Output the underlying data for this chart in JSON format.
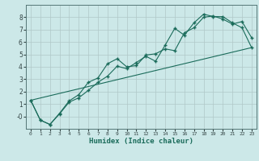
{
  "xlabel": "Humidex (Indice chaleur)",
  "bg_color": "#cce8e8",
  "grid_color": "#b0c8c8",
  "line_color": "#1a6b5a",
  "xlim": [
    -0.5,
    23.5
  ],
  "ylim": [
    -1.0,
    9.0
  ],
  "xticks": [
    0,
    1,
    2,
    3,
    4,
    5,
    6,
    7,
    8,
    9,
    10,
    11,
    12,
    13,
    14,
    15,
    16,
    17,
    18,
    19,
    20,
    21,
    22,
    23
  ],
  "yticks": [
    0,
    1,
    2,
    3,
    4,
    5,
    6,
    7,
    8
  ],
  "line1_x": [
    0,
    1,
    2,
    3,
    4,
    5,
    6,
    7,
    8,
    9,
    10,
    11,
    12,
    13,
    14,
    15,
    16,
    17,
    18,
    19,
    20,
    21,
    22,
    23
  ],
  "line1_y": [
    1.3,
    -0.3,
    -0.65,
    0.25,
    1.25,
    1.75,
    2.75,
    3.1,
    4.25,
    4.65,
    4.0,
    4.1,
    4.95,
    5.05,
    5.45,
    5.3,
    6.75,
    7.15,
    8.0,
    8.1,
    7.85,
    7.45,
    7.65,
    6.35
  ],
  "line2_x": [
    0,
    1,
    2,
    3,
    4,
    5,
    6,
    7,
    8,
    9,
    10,
    11,
    12,
    13,
    14,
    15,
    16,
    17,
    18,
    19,
    20,
    21,
    22,
    23
  ],
  "line2_y": [
    1.3,
    -0.3,
    -0.65,
    0.2,
    1.15,
    1.5,
    2.1,
    2.75,
    3.25,
    4.05,
    3.85,
    4.35,
    4.85,
    4.45,
    5.75,
    7.1,
    6.55,
    7.55,
    8.25,
    8.05,
    8.05,
    7.55,
    7.15,
    5.55
  ],
  "line3_x": [
    0,
    23
  ],
  "line3_y": [
    1.3,
    5.55
  ]
}
